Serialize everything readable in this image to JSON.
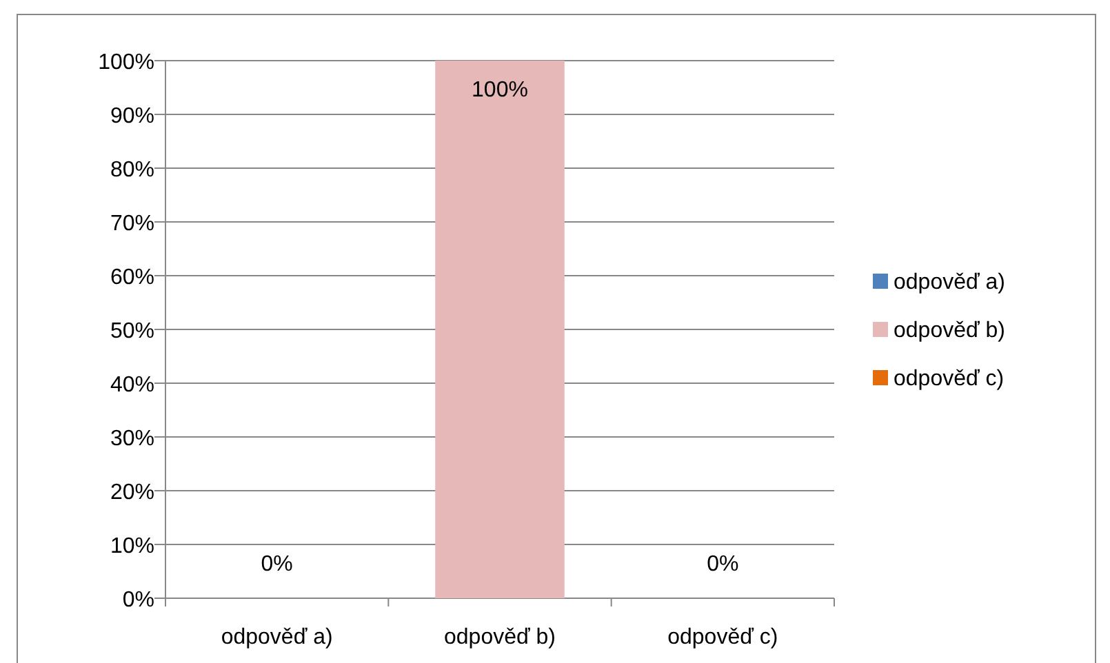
{
  "chart_data": {
    "type": "bar",
    "categories": [
      "odpověď a)",
      "odpověď b)",
      "odpověď c)"
    ],
    "stacked": true,
    "series": [
      {
        "name": "odpověď a)",
        "color": "#4f81bd",
        "values": [
          0,
          null,
          null
        ],
        "value_labels": [
          "0%",
          null,
          null
        ]
      },
      {
        "name": "odpověď b)",
        "color": "#e6b9b8",
        "values": [
          null,
          100,
          null
        ],
        "value_labels": [
          null,
          "100%",
          null
        ]
      },
      {
        "name": "odpověď c)",
        "color": "#e46c0a",
        "values": [
          null,
          null,
          0
        ],
        "value_labels": [
          null,
          null,
          "0%"
        ]
      }
    ],
    "ylim": [
      0,
      100
    ],
    "yticks": [
      {
        "value": 0,
        "label": "0%"
      },
      {
        "value": 10,
        "label": "10%"
      },
      {
        "value": 20,
        "label": "20%"
      },
      {
        "value": 30,
        "label": "30%"
      },
      {
        "value": 40,
        "label": "40%"
      },
      {
        "value": 50,
        "label": "50%"
      },
      {
        "value": 60,
        "label": "60%"
      },
      {
        "value": 70,
        "label": "70%"
      },
      {
        "value": 80,
        "label": "80%"
      },
      {
        "value": 90,
        "label": "90%"
      },
      {
        "value": 100,
        "label": "100%"
      }
    ],
    "grid": "y",
    "legend": "right"
  }
}
